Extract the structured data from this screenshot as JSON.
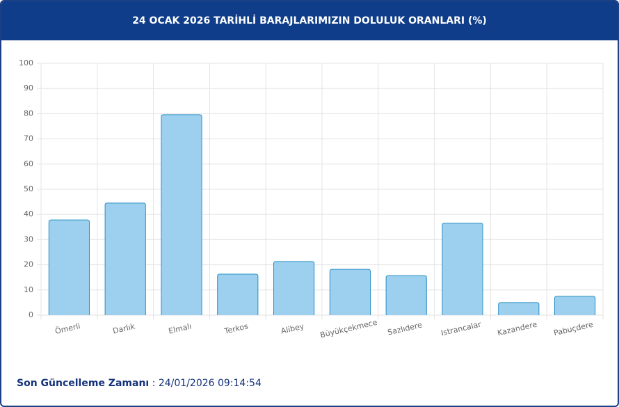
{
  "chart_data": {
    "type": "bar",
    "title": "24 OCAK 2026 TARİHLİ BARAJLARIMIZIN DOLULUK ORANLARI (%)",
    "categories": [
      "Ömerli",
      "Darlık",
      "Elmalı",
      "Terkos",
      "Alibey",
      "Büyükçekmece",
      "Sazlıdere",
      "Istrancalar",
      "Kazandere",
      "Pabuçdere"
    ],
    "values": [
      37.8,
      44.5,
      79.6,
      16.3,
      21.3,
      18.2,
      15.7,
      36.5,
      5.0,
      7.5
    ],
    "color": "#9dd0ee",
    "edge_color": "#2a8fc4",
    "ylim": [
      0,
      100
    ],
    "yticks": [
      0,
      10,
      20,
      30,
      40,
      50,
      60,
      70,
      80,
      90,
      100
    ],
    "grid": true
  },
  "footer": {
    "label": "Son Güncelleme Zamanı",
    "separator": ":",
    "value": "24/01/2026 09:14:54"
  }
}
